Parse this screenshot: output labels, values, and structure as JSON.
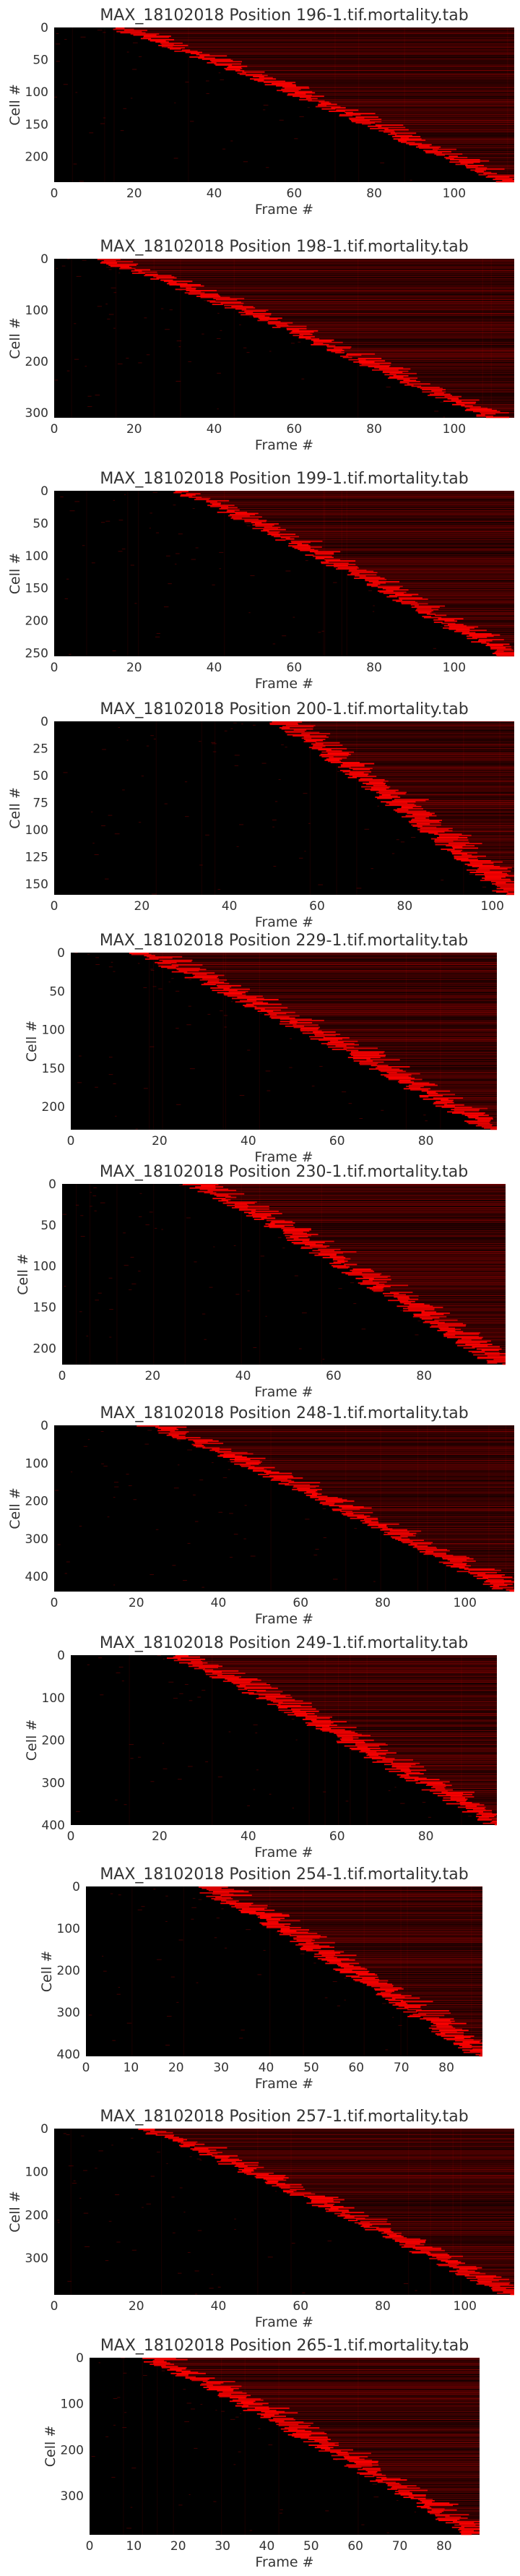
{
  "colors": {
    "background": "#000000",
    "accent": "#ff0000"
  },
  "chart_data": [
    {
      "type": "heatmap",
      "title": "MAX_18102018 Position 196-1.tif.mortality.tab",
      "xlabel": "Frame #",
      "ylabel": "Cell #",
      "xlim": [
        0,
        115
      ],
      "ylim": [
        0,
        240
      ],
      "xticks": [
        0,
        20,
        40,
        60,
        80,
        100
      ],
      "yticks": [
        0,
        50,
        100,
        150,
        200
      ],
      "y_inverted": true,
      "grid": false,
      "death_onset": {
        "cell": [
          0,
          240
        ],
        "frame": [
          14,
          112
        ]
      }
    },
    {
      "type": "heatmap",
      "title": "MAX_18102018 Position 198-1.tif.mortality.tab",
      "xlabel": "Frame #",
      "ylabel": "Cell #",
      "xlim": [
        0,
        115
      ],
      "ylim": [
        0,
        310
      ],
      "xticks": [
        0,
        20,
        40,
        60,
        80,
        100
      ],
      "yticks": [
        0,
        100,
        200,
        300
      ],
      "y_inverted": true,
      "grid": false,
      "death_onset": {
        "cell": [
          0,
          310
        ],
        "frame": [
          10,
          108
        ]
      }
    },
    {
      "type": "heatmap",
      "title": "MAX_18102018 Position 199-1.tif.mortality.tab",
      "xlabel": "Frame #",
      "ylabel": "Cell #",
      "xlim": [
        0,
        115
      ],
      "ylim": [
        0,
        255
      ],
      "xticks": [
        0,
        20,
        40,
        60,
        80,
        100
      ],
      "yticks": [
        0,
        50,
        100,
        150,
        200,
        250
      ],
      "y_inverted": true,
      "grid": false,
      "death_onset": {
        "cell": [
          0,
          255
        ],
        "frame": [
          30,
          112
        ]
      }
    },
    {
      "type": "heatmap",
      "title": "MAX_18102018 Position 200-1.tif.mortality.tab",
      "xlabel": "Frame #",
      "ylabel": "Cell #",
      "xlim": [
        0,
        105
      ],
      "ylim": [
        0,
        160
      ],
      "xticks": [
        0,
        20,
        40,
        60,
        80,
        100
      ],
      "yticks": [
        0,
        25,
        50,
        75,
        100,
        125,
        150
      ],
      "y_inverted": true,
      "grid": false,
      "death_onset": {
        "cell": [
          0,
          160
        ],
        "frame": [
          50,
          103
        ]
      }
    },
    {
      "type": "heatmap",
      "title": "MAX_18102018 Position 229-1.tif.mortality.tab",
      "xlabel": "Frame #",
      "ylabel": "Cell #",
      "xlim": [
        0,
        96
      ],
      "ylim": [
        0,
        230
      ],
      "xticks": [
        0,
        20,
        40,
        60,
        80
      ],
      "yticks": [
        0,
        50,
        100,
        150,
        200
      ],
      "y_inverted": true,
      "grid": false,
      "death_onset": {
        "cell": [
          0,
          230
        ],
        "frame": [
          14,
          94
        ]
      }
    },
    {
      "type": "heatmap",
      "title": "MAX_18102018 Position 230-1.tif.mortality.tab",
      "xlabel": "Frame #",
      "ylabel": "Cell #",
      "xlim": [
        0,
        98
      ],
      "ylim": [
        0,
        220
      ],
      "xticks": [
        0,
        20,
        40,
        60,
        80
      ],
      "yticks": [
        0,
        50,
        100,
        150,
        200
      ],
      "y_inverted": true,
      "grid": false,
      "death_onset": {
        "cell": [
          0,
          220
        ],
        "frame": [
          28,
          96
        ]
      }
    },
    {
      "type": "heatmap",
      "title": "MAX_18102018 Position 248-1.tif.mortality.tab",
      "xlabel": "Frame #",
      "ylabel": "Cell #",
      "xlim": [
        0,
        112
      ],
      "ylim": [
        0,
        440
      ],
      "xticks": [
        0,
        20,
        40,
        60,
        80,
        100
      ],
      "yticks": [
        0,
        100,
        200,
        300,
        400
      ],
      "y_inverted": true,
      "grid": false,
      "death_onset": {
        "cell": [
          0,
          440
        ],
        "frame": [
          22,
          110
        ]
      }
    },
    {
      "type": "heatmap",
      "title": "MAX_18102018 Position 249-1.tif.mortality.tab",
      "xlabel": "Frame #",
      "ylabel": "Cell #",
      "xlim": [
        0,
        96
      ],
      "ylim": [
        0,
        400
      ],
      "xticks": [
        0,
        20,
        40,
        60,
        80
      ],
      "yticks": [
        0,
        100,
        200,
        300,
        400
      ],
      "y_inverted": true,
      "grid": false,
      "death_onset": {
        "cell": [
          0,
          400
        ],
        "frame": [
          22,
          95
        ]
      }
    },
    {
      "type": "heatmap",
      "title": "MAX_18102018 Position 254-1.tif.mortality.tab",
      "xlabel": "Frame #",
      "ylabel": "Cell #",
      "xlim": [
        0,
        88
      ],
      "ylim": [
        0,
        405
      ],
      "xticks": [
        0,
        10,
        20,
        30,
        40,
        50,
        60,
        70,
        80
      ],
      "yticks": [
        0,
        100,
        200,
        300,
        400
      ],
      "y_inverted": true,
      "grid": false,
      "death_onset": {
        "cell": [
          0,
          405
        ],
        "frame": [
          24,
          87
        ]
      }
    },
    {
      "type": "heatmap",
      "title": "MAX_18102018 Position 257-1.tif.mortality.tab",
      "xlabel": "Frame #",
      "ylabel": "Cell #",
      "xlim": [
        0,
        112
      ],
      "ylim": [
        0,
        385
      ],
      "xticks": [
        0,
        20,
        40,
        60,
        80,
        100
      ],
      "yticks": [
        0,
        100,
        200,
        300
      ],
      "y_inverted": true,
      "grid": false,
      "death_onset": {
        "cell": [
          0,
          385
        ],
        "frame": [
          20,
          110
        ]
      }
    },
    {
      "type": "heatmap",
      "title": "MAX_18102018 Position 265-1.tif.mortality.tab",
      "xlabel": "Frame #",
      "ylabel": "Cell #",
      "xlim": [
        0,
        88
      ],
      "ylim": [
        0,
        385
      ],
      "xticks": [
        0,
        10,
        20,
        30,
        40,
        50,
        60,
        70,
        80
      ],
      "yticks": [
        0,
        100,
        200,
        300
      ],
      "y_inverted": true,
      "grid": false,
      "death_onset": {
        "cell": [
          0,
          385
        ],
        "frame": [
          12,
          86
        ]
      }
    }
  ]
}
